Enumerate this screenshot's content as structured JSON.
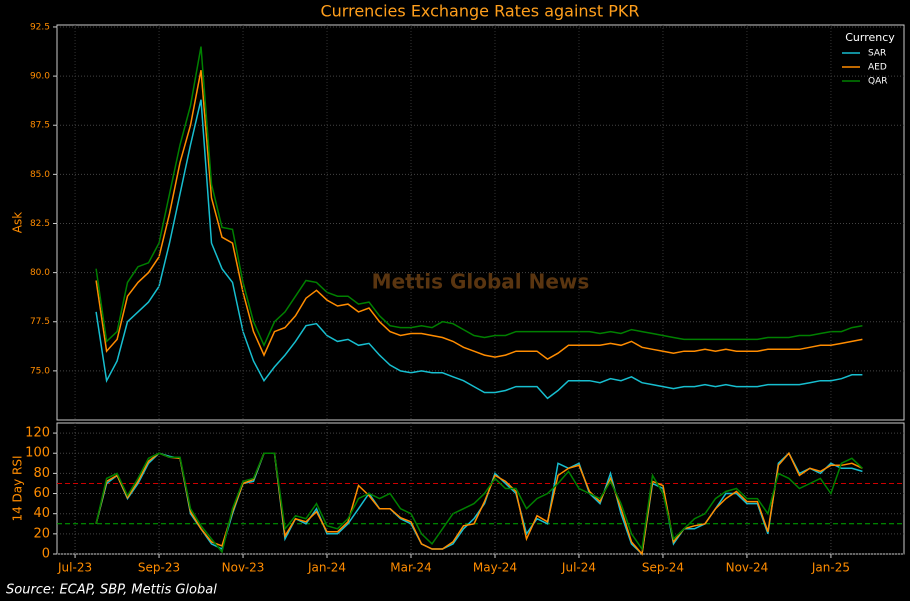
{
  "chart_data": [
    {
      "type": "line",
      "title": "Currencies Exchange Rates against PKR",
      "ylabel": "Ask",
      "watermark": "Mettis Global News",
      "legend": "upper right",
      "legend_title": "Currency",
      "grid": true,
      "xlim": [
        -0.43,
        19.74
      ],
      "ylim": [
        72.5,
        92.6
      ],
      "yticks": [
        {
          "value": 75,
          "label": "75.0"
        },
        77.5,
        {
          "value": 80,
          "label": "80.0"
        },
        82.5,
        {
          "value": 85,
          "label": "85.0"
        },
        87.5,
        {
          "value": 90,
          "label": "90.0"
        },
        92.5
      ],
      "x": [
        0.5,
        0.75,
        1,
        1.25,
        1.5,
        1.75,
        2,
        2.25,
        2.5,
        2.75,
        3,
        3.25,
        3.5,
        3.75,
        4,
        4.25,
        4.5,
        4.75,
        5,
        5.25,
        5.5,
        5.75,
        6,
        6.25,
        6.5,
        6.75,
        7,
        7.25,
        7.5,
        7.75,
        8,
        8.25,
        8.5,
        8.75,
        9,
        9.25,
        9.5,
        9.75,
        10,
        10.25,
        10.5,
        10.75,
        11,
        11.25,
        11.5,
        11.75,
        12,
        12.25,
        12.5,
        12.75,
        13,
        13.25,
        13.5,
        13.75,
        14,
        14.25,
        14.5,
        14.75,
        15,
        15.25,
        15.5,
        15.75,
        16,
        16.25,
        16.5,
        16.75,
        17,
        17.25,
        17.5,
        17.75,
        18,
        18.25,
        18.5,
        18.75
      ],
      "series": [
        {
          "name": "SAR",
          "color": "#17becf",
          "values": [
            78.0,
            74.5,
            75.5,
            77.5,
            78.0,
            78.5,
            79.3,
            81.5,
            84.0,
            86.5,
            88.8,
            81.5,
            80.2,
            79.5,
            77.0,
            75.5,
            74.5,
            75.2,
            75.8,
            76.5,
            77.3,
            77.4,
            76.8,
            76.5,
            76.6,
            76.3,
            76.4,
            75.8,
            75.3,
            75.0,
            74.9,
            75.0,
            74.9,
            74.9,
            74.7,
            74.5,
            74.2,
            73.9,
            73.9,
            74.0,
            74.2,
            74.2,
            74.2,
            73.6,
            74.0,
            74.5,
            74.5,
            74.5,
            74.4,
            74.6,
            74.5,
            74.7,
            74.4,
            74.3,
            74.2,
            74.1,
            74.2,
            74.2,
            74.3,
            74.2,
            74.3,
            74.2,
            74.2,
            74.2,
            74.3,
            74.3,
            74.3,
            74.3,
            74.4,
            74.5,
            74.5,
            74.6,
            74.8,
            74.8
          ]
        },
        {
          "name": "AED",
          "color": "#ff8c00",
          "values": [
            79.6,
            76.0,
            76.6,
            78.8,
            79.5,
            80.0,
            80.8,
            83.0,
            85.6,
            87.5,
            90.3,
            83.8,
            81.8,
            81.5,
            79.0,
            77.0,
            75.8,
            77.0,
            77.2,
            77.8,
            78.7,
            79.1,
            78.6,
            78.3,
            78.4,
            78.0,
            78.2,
            77.5,
            77.0,
            76.8,
            76.9,
            76.9,
            76.8,
            76.7,
            76.5,
            76.2,
            76.0,
            75.8,
            75.7,
            75.8,
            76.0,
            76.0,
            76.0,
            75.6,
            75.9,
            76.3,
            76.3,
            76.3,
            76.3,
            76.4,
            76.3,
            76.5,
            76.2,
            76.1,
            76.0,
            75.9,
            76.0,
            76.0,
            76.1,
            76.0,
            76.1,
            76.0,
            76.0,
            76.0,
            76.1,
            76.1,
            76.1,
            76.1,
            76.2,
            76.3,
            76.3,
            76.4,
            76.5,
            76.6
          ]
        },
        {
          "name": "QAR",
          "color": "#008000",
          "values": [
            80.2,
            76.5,
            77.0,
            79.5,
            80.3,
            80.5,
            81.5,
            84.0,
            86.5,
            88.5,
            91.5,
            84.5,
            82.3,
            82.2,
            79.5,
            77.5,
            76.3,
            77.5,
            78.0,
            78.8,
            79.6,
            79.5,
            79.0,
            78.8,
            78.8,
            78.4,
            78.5,
            77.8,
            77.3,
            77.2,
            77.2,
            77.3,
            77.2,
            77.5,
            77.4,
            77.1,
            76.8,
            76.7,
            76.8,
            76.8,
            77.0,
            77.0,
            77.0,
            77.0,
            77.0,
            77.0,
            77.0,
            77.0,
            76.9,
            77.0,
            76.9,
            77.1,
            77.0,
            76.9,
            76.8,
            76.7,
            76.6,
            76.6,
            76.6,
            76.6,
            76.6,
            76.6,
            76.6,
            76.6,
            76.7,
            76.7,
            76.7,
            76.8,
            76.8,
            76.9,
            77.0,
            77.0,
            77.2,
            77.3
          ]
        }
      ]
    },
    {
      "type": "line",
      "ylabel": "14 Day RSI",
      "grid": true,
      "xlim": [
        -0.43,
        19.74
      ],
      "ylim": [
        0,
        130
      ],
      "yticks": [
        0,
        20,
        40,
        60,
        80,
        100,
        120
      ],
      "xticks": [
        {
          "value": 0,
          "label": "Jul-23"
        },
        {
          "value": 2,
          "label": "Sep-23"
        },
        {
          "value": 4,
          "label": "Nov-23"
        },
        {
          "value": 6,
          "label": "Jan-24"
        },
        {
          "value": 8,
          "label": "Mar-24"
        },
        {
          "value": 10,
          "label": "May-24"
        },
        {
          "value": 12,
          "label": "Jul-24"
        },
        {
          "value": 14,
          "label": "Sep-24"
        },
        {
          "value": 16,
          "label": "Nov-24"
        },
        {
          "value": 18,
          "label": "Jan-25"
        }
      ],
      "reference_lines": [
        {
          "value": 70,
          "color": "#cc0000"
        },
        {
          "value": 30,
          "color": "#00aa00"
        }
      ],
      "x": [
        0.5,
        0.75,
        1,
        1.25,
        1.5,
        1.75,
        2,
        2.25,
        2.5,
        2.75,
        3,
        3.25,
        3.5,
        3.75,
        4,
        4.25,
        4.5,
        4.75,
        5,
        5.25,
        5.5,
        5.75,
        6,
        6.25,
        6.5,
        6.75,
        7,
        7.25,
        7.5,
        7.75,
        8,
        8.25,
        8.5,
        8.75,
        9,
        9.25,
        9.5,
        9.75,
        10,
        10.25,
        10.5,
        10.75,
        11,
        11.25,
        11.5,
        11.75,
        12,
        12.25,
        12.5,
        12.75,
        13,
        13.25,
        13.5,
        13.75,
        14,
        14.25,
        14.5,
        14.75,
        15,
        15.25,
        15.5,
        15.75,
        16,
        16.25,
        16.5,
        16.75,
        17,
        17.25,
        17.5,
        17.75,
        18,
        18.25,
        18.5,
        18.75
      ],
      "series": [
        {
          "name": "SAR",
          "color": "#17becf",
          "values": [
            30,
            70,
            78,
            55,
            70,
            90,
            100,
            97,
            95,
            40,
            25,
            10,
            5,
            40,
            70,
            72,
            100,
            100,
            15,
            35,
            30,
            45,
            20,
            20,
            30,
            45,
            60,
            45,
            45,
            35,
            30,
            10,
            5,
            5,
            10,
            25,
            35,
            50,
            80,
            70,
            60,
            20,
            35,
            30,
            90,
            85,
            90,
            60,
            50,
            80,
            40,
            10,
            0,
            70,
            65,
            10,
            25,
            25,
            30,
            45,
            60,
            60,
            50,
            50,
            20,
            90,
            100,
            80,
            85,
            80,
            90,
            85,
            85,
            82
          ]
        },
        {
          "name": "AED",
          "color": "#ff8c00",
          "values": [
            30,
            72,
            78,
            56,
            72,
            92,
            100,
            96,
            95,
            42,
            25,
            12,
            8,
            42,
            70,
            74,
            100,
            100,
            18,
            35,
            32,
            42,
            22,
            22,
            32,
            68,
            58,
            45,
            45,
            36,
            32,
            10,
            5,
            5,
            12,
            28,
            30,
            52,
            78,
            72,
            62,
            15,
            38,
            32,
            78,
            85,
            88,
            62,
            52,
            75,
            45,
            12,
            0,
            72,
            68,
            12,
            25,
            28,
            30,
            45,
            55,
            62,
            52,
            52,
            22,
            88,
            100,
            78,
            85,
            82,
            88,
            88,
            90,
            85
          ]
        },
        {
          "name": "QAR",
          "color": "#008000",
          "values": [
            30,
            75,
            80,
            58,
            75,
            95,
            100,
            96,
            96,
            45,
            28,
            15,
            2,
            45,
            72,
            75,
            100,
            100,
            25,
            38,
            35,
            50,
            28,
            25,
            35,
            55,
            60,
            55,
            60,
            45,
            40,
            20,
            10,
            25,
            40,
            45,
            50,
            60,
            75,
            65,
            65,
            45,
            55,
            60,
            70,
            82,
            65,
            60,
            55,
            72,
            50,
            20,
            5,
            78,
            60,
            15,
            25,
            35,
            40,
            55,
            62,
            65,
            55,
            55,
            40,
            80,
            75,
            65,
            70,
            75,
            60,
            90,
            95,
            85
          ]
        }
      ]
    }
  ],
  "source": "Source: ECAP, SBP, Mettis Global"
}
